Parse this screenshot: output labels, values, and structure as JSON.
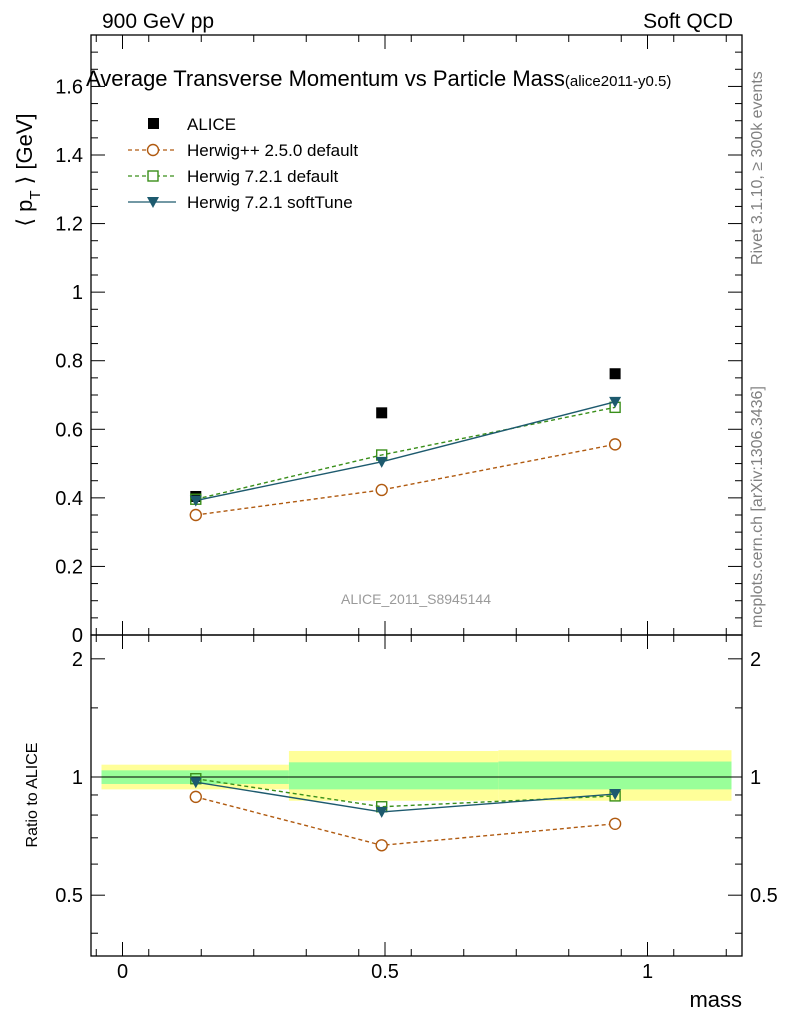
{
  "header": {
    "left": "900 GeV pp",
    "right": "Soft QCD"
  },
  "side_labels": {
    "rivet": "Rivet 3.1.10, ≥ 300k events",
    "mcplots": "mcplots.cern.ch [arXiv:1306.3436]"
  },
  "colors": {
    "alice": "#000000",
    "herwigpp": "#b05a10",
    "herwig721": "#3a8f1a",
    "softtune": "#1d5a6e",
    "band_outer": "#ffff99",
    "band_inner": "#99ff99"
  },
  "chart_data": [
    {
      "type": "scatter",
      "title": "Average Transverse Momentum vs Particle Mass",
      "title_tag": "(alice2011-y0.5)",
      "ylabel": "⟨ p_T ⟩ [GeV]",
      "ylabel_main": "⟨ p",
      "ylabel_sub": "T",
      "ylabel_rest": " ⟩ [GeV]",
      "xlim": [
        -0.06,
        1.18
      ],
      "ylim": [
        0,
        1.75
      ],
      "yticks": [
        0,
        0.2,
        0.4,
        0.6,
        0.8,
        1,
        1.2,
        1.4,
        1.6
      ],
      "ytick_labels": [
        "0",
        "0.2",
        "0.4",
        "0.6",
        "0.8",
        "1",
        "1.2",
        "1.4",
        "1.6"
      ],
      "watermark": "ALICE_2011_S8945144",
      "x": [
        0.1396,
        0.4937,
        0.9383
      ],
      "series": [
        {
          "name": "ALICE",
          "values": [
            0.404,
            0.648,
            0.762
          ],
          "marker": "square-filled",
          "line": "none",
          "color": "#000000"
        },
        {
          "name": "Herwig++ 2.5.0 default",
          "values": [
            0.35,
            0.423,
            0.556
          ],
          "marker": "circle-open",
          "line": "dashed",
          "color": "#b05a10"
        },
        {
          "name": "Herwig 7.2.1 default",
          "values": [
            0.396,
            0.525,
            0.664
          ],
          "marker": "square-open",
          "line": "dashed",
          "color": "#3a8f1a"
        },
        {
          "name": "Herwig 7.2.1 softTune",
          "values": [
            0.392,
            0.505,
            0.68
          ],
          "marker": "triangle-down",
          "line": "solid",
          "color": "#1d5a6e"
        }
      ]
    },
    {
      "type": "line",
      "ylabel": "Ratio to ALICE",
      "xlabel": "mass",
      "xlim": [
        -0.06,
        1.18
      ],
      "ylim": [
        0.35,
        2.3
      ],
      "ylog": true,
      "xticks": [
        0,
        0.5,
        1
      ],
      "xtick_labels": [
        "0",
        "0.5",
        "1"
      ],
      "yticks": [
        0.5,
        1,
        2
      ],
      "ytick_labels": [
        "0.5",
        "1",
        "2"
      ],
      "reference": 1,
      "bands": [
        {
          "x0": -0.04,
          "x1": 0.317,
          "outer": [
            0.93,
            1.075
          ],
          "inner": [
            0.96,
            1.04
          ]
        },
        {
          "x0": 0.317,
          "x1": 0.716,
          "outer": [
            0.87,
            1.165
          ],
          "inner": [
            0.93,
            1.09
          ]
        },
        {
          "x0": 0.716,
          "x1": 1.16,
          "outer": [
            0.87,
            1.17
          ],
          "inner": [
            0.93,
            1.095
          ]
        }
      ],
      "x": [
        0.1396,
        0.4937,
        0.9383
      ],
      "series": [
        {
          "name": "Herwig++ 2.5.0 default",
          "values": [
            0.89,
            0.67,
            0.76
          ],
          "marker": "circle-open",
          "line": "dashed",
          "color": "#b05a10"
        },
        {
          "name": "Herwig 7.2.1 default",
          "values": [
            0.99,
            0.84,
            0.895
          ],
          "marker": "square-open",
          "line": "dashed",
          "color": "#3a8f1a"
        },
        {
          "name": "Herwig 7.2.1 softTune",
          "values": [
            0.97,
            0.815,
            0.905
          ],
          "marker": "triangle-down",
          "line": "solid",
          "color": "#1d5a6e"
        }
      ]
    }
  ]
}
